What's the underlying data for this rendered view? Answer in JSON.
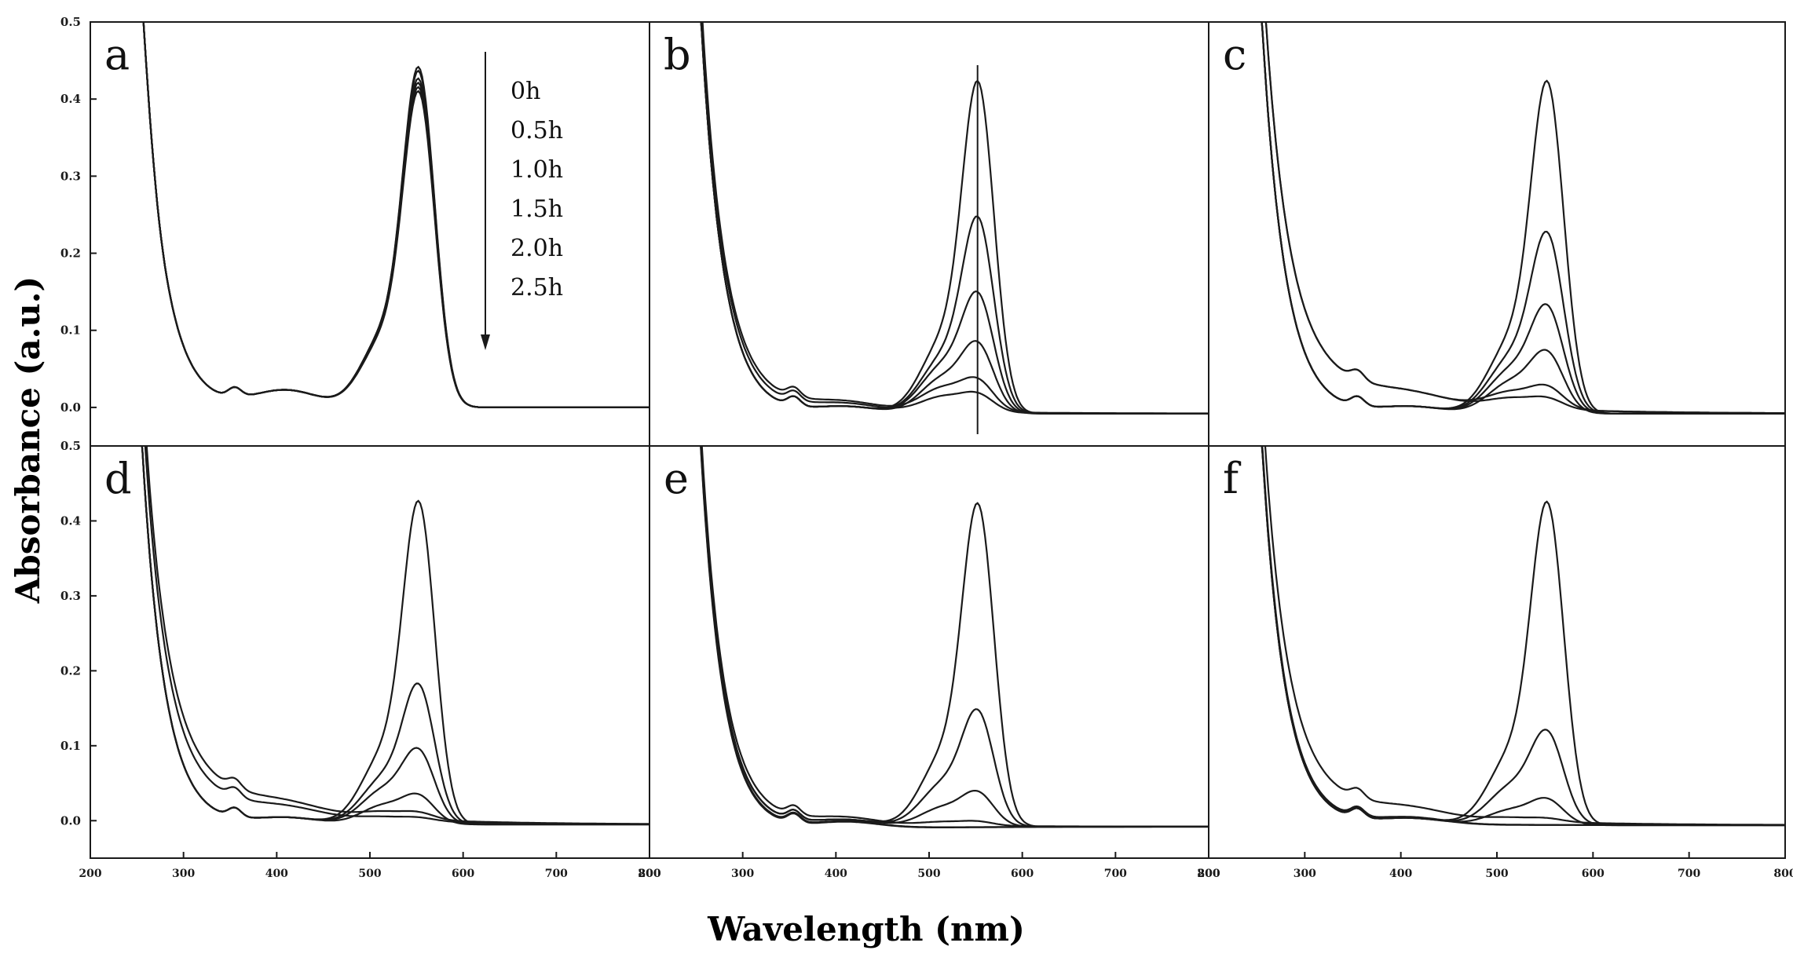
{
  "figure": {
    "ylabel": "Absorbance (a.u.)",
    "xlabel": "Wavelength (nm)",
    "legend": [
      "0h",
      "0.5h",
      "1.0h",
      "1.5h",
      "2.0h",
      "2.5h"
    ]
  },
  "chart_data": [
    {
      "type": "line",
      "panel_label": "a",
      "xlim": [
        200,
        800
      ],
      "ylim": [
        -0.05,
        0.5
      ],
      "xticks": [],
      "yticks": [
        0.0,
        0.1,
        0.2,
        0.3,
        0.4,
        0.5
      ],
      "series": [
        {
          "name": "0h",
          "peak": 0.415,
          "shoulder": 0.09,
          "uv": 0.0,
          "base": 0.0
        },
        {
          "name": "0.5h",
          "peak": 0.41,
          "shoulder": 0.09,
          "uv": 0.0,
          "base": 0.0
        },
        {
          "name": "1.0h",
          "peak": 0.4,
          "shoulder": 0.09,
          "uv": 0.0,
          "base": 0.0
        },
        {
          "name": "1.5h",
          "peak": 0.395,
          "shoulder": 0.088,
          "uv": 0.0,
          "base": 0.0
        },
        {
          "name": "2.0h",
          "peak": 0.39,
          "shoulder": 0.086,
          "uv": 0.0,
          "base": 0.0
        },
        {
          "name": "2.5h",
          "peak": 0.385,
          "shoulder": 0.085,
          "uv": 0.0,
          "base": 0.0
        }
      ]
    },
    {
      "type": "line",
      "panel_label": "b",
      "xlim": [
        200,
        800
      ],
      "ylim": [
        -0.05,
        0.5
      ],
      "xticks": [],
      "yticks": [],
      "series": [
        {
          "name": "0h",
          "peak": 0.405,
          "shoulder": 0.09,
          "uv": 0.0,
          "base": -0.008
        },
        {
          "name": "0.5h",
          "peak": 0.235,
          "shoulder": 0.07,
          "uv": 0.0,
          "base": -0.008
        },
        {
          "name": "1.0h",
          "peak": 0.14,
          "shoulder": 0.06,
          "uv": 0.0,
          "base": -0.008
        },
        {
          "name": "1.5h",
          "peak": 0.08,
          "shoulder": 0.045,
          "uv": 0.0,
          "base": -0.008
        },
        {
          "name": "2.0h",
          "peak": 0.035,
          "shoulder": 0.03,
          "uv": 0.05,
          "base": -0.008
        },
        {
          "name": "2.5h",
          "peak": 0.02,
          "shoulder": 0.02,
          "uv": 0.03,
          "base": -0.008
        }
      ]
    },
    {
      "type": "line",
      "panel_label": "c",
      "xlim": [
        200,
        800
      ],
      "ylim": [
        -0.05,
        0.5
      ],
      "xticks": [],
      "yticks": [],
      "series": [
        {
          "name": "0h",
          "peak": 0.405,
          "shoulder": 0.09,
          "uv": 0.0,
          "base": -0.008
        },
        {
          "name": "0.5h",
          "peak": 0.215,
          "shoulder": 0.07,
          "uv": 0.0,
          "base": -0.008
        },
        {
          "name": "1.0h",
          "peak": 0.125,
          "shoulder": 0.055,
          "uv": 0.0,
          "base": -0.008
        },
        {
          "name": "1.5h",
          "peak": 0.07,
          "shoulder": 0.04,
          "uv": 0.0,
          "base": -0.008
        },
        {
          "name": "2.0h",
          "peak": 0.025,
          "shoulder": 0.02,
          "uv": 0.14,
          "base": -0.008
        },
        {
          "name": "2.5h",
          "peak": 0.012,
          "shoulder": 0.012,
          "uv": 0.14,
          "base": -0.008
        }
      ]
    },
    {
      "type": "line",
      "panel_label": "d",
      "xlim": [
        200,
        800
      ],
      "ylim": [
        -0.05,
        0.5
      ],
      "xticks": [
        200,
        300,
        400,
        500,
        600,
        700,
        800
      ],
      "yticks": [
        0.0,
        0.1,
        0.2,
        0.3,
        0.4,
        0.5
      ],
      "series": [
        {
          "name": "0h",
          "peak": 0.405,
          "shoulder": 0.09,
          "uv": 0.0,
          "base": -0.005
        },
        {
          "name": "0.5h",
          "peak": 0.17,
          "shoulder": 0.06,
          "uv": 0.0,
          "base": -0.005
        },
        {
          "name": "1.0h",
          "peak": 0.088,
          "shoulder": 0.045,
          "uv": 0.0,
          "base": -0.005
        },
        {
          "name": "1.5h",
          "peak": 0.033,
          "shoulder": 0.025,
          "uv": 0.0,
          "base": -0.005
        },
        {
          "name": "2.0h",
          "peak": 0.008,
          "shoulder": 0.008,
          "uv": 0.16,
          "base": -0.005
        },
        {
          "name": "2.5h",
          "peak": 0.004,
          "shoulder": 0.004,
          "uv": 0.11,
          "base": -0.005
        }
      ]
    },
    {
      "type": "line",
      "panel_label": "e",
      "xlim": [
        200,
        800
      ],
      "ylim": [
        -0.05,
        0.5
      ],
      "xticks": [
        200,
        300,
        400,
        500,
        600,
        700,
        800
      ],
      "yticks": [],
      "series": [
        {
          "name": "0h",
          "peak": 0.405,
          "shoulder": 0.09,
          "uv": 0.0,
          "base": -0.008
        },
        {
          "name": "0.5h",
          "peak": 0.14,
          "shoulder": 0.055,
          "uv": 0.0,
          "base": -0.008
        },
        {
          "name": "1.0h",
          "peak": 0.04,
          "shoulder": 0.025,
          "uv": 0.0,
          "base": -0.008
        },
        {
          "name": "1.5h",
          "peak": 0.005,
          "shoulder": 0.005,
          "uv": 0.025,
          "base": -0.008
        },
        {
          "name": "2.0h",
          "peak": 0.0,
          "shoulder": 0.0,
          "uv": -0.015,
          "base": -0.008
        },
        {
          "name": "2.5h",
          "peak": 0.0,
          "shoulder": 0.0,
          "uv": -0.02,
          "base": -0.008
        }
      ]
    },
    {
      "type": "line",
      "panel_label": "f",
      "xlim": [
        200,
        800
      ],
      "ylim": [
        -0.05,
        0.5
      ],
      "xticks": [
        200,
        300,
        400,
        500,
        600,
        700,
        800
      ],
      "yticks": [],
      "series": [
        {
          "name": "0h",
          "peak": 0.405,
          "shoulder": 0.09,
          "uv": 0.0,
          "base": -0.006
        },
        {
          "name": "0.5h",
          "peak": 0.112,
          "shoulder": 0.05,
          "uv": 0.0,
          "base": -0.006
        },
        {
          "name": "1.0h",
          "peak": 0.03,
          "shoulder": 0.02,
          "uv": 0.0,
          "base": -0.006
        },
        {
          "name": "1.5h",
          "peak": 0.004,
          "shoulder": 0.004,
          "uv": 0.11,
          "base": -0.006
        },
        {
          "name": "2.0h",
          "peak": 0.0,
          "shoulder": 0.0,
          "uv": 0.01,
          "base": -0.006
        },
        {
          "name": "2.5h",
          "peak": 0.0,
          "shoulder": 0.0,
          "uv": 0.005,
          "base": -0.006
        }
      ]
    }
  ]
}
